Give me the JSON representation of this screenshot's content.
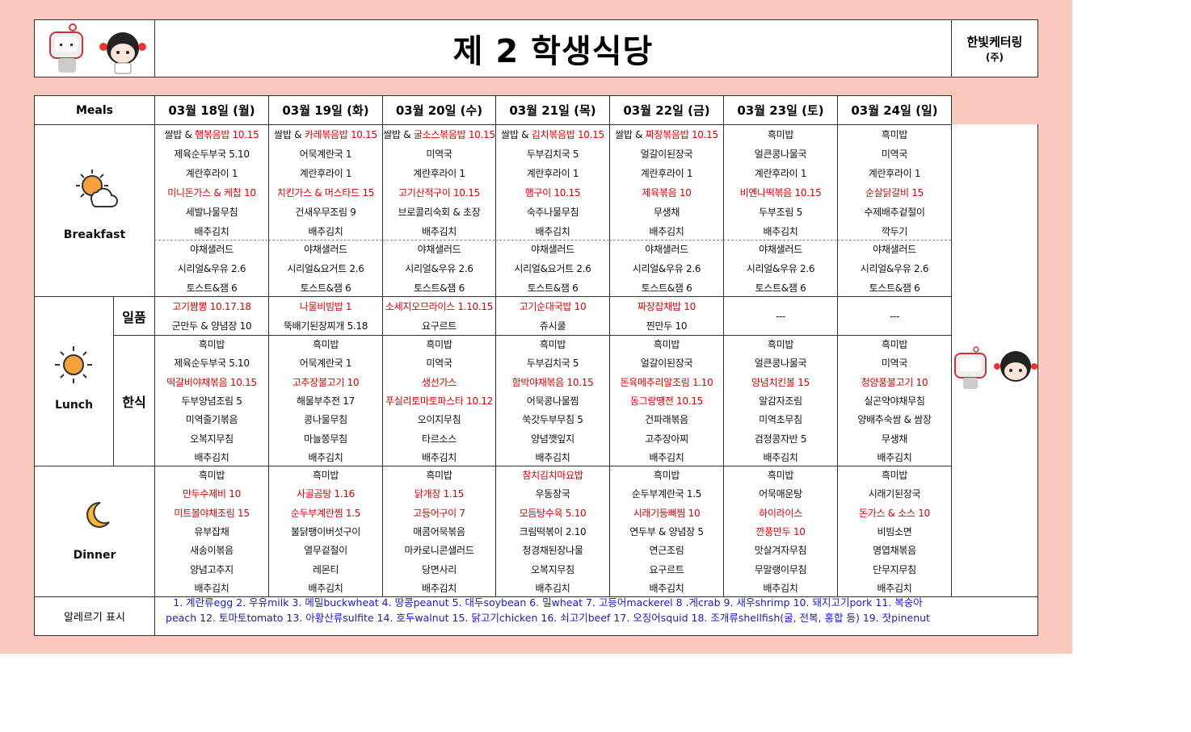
{
  "header": {
    "title": "제 2 학생식당",
    "company": "한빛케터링",
    "company_suffix": "(주)"
  },
  "table": {
    "corner": "Meals",
    "dates": [
      "03월 18일 (월)",
      "03월 19일 (화)",
      "03월 20일 (수)",
      "03월 21일 (목)",
      "03월 22일 (금)",
      "03월 23일 (토)",
      "03월 24일 (일)"
    ],
    "breakfast": {
      "label": "Breakfast",
      "main": [
        [
          {
            "prefix": "쌀밥 & ",
            "text": "햄볶음밥 10.15",
            "highlight": true
          },
          "제육순두부국 5.10",
          "계란후라이 1",
          {
            "text": "미니돈가스 & 케찹 10",
            "highlight": true
          },
          "세발나물무침",
          "배추김치"
        ],
        [
          {
            "prefix": "쌀밥 & ",
            "text": "카레볶음밥 10.15",
            "highlight": true
          },
          "어묵계란국 1",
          "계란후라이 1",
          {
            "text": "치킨가스 & 머스타드 15",
            "highlight": true
          },
          "건새우무조림 9",
          "배추김치"
        ],
        [
          {
            "prefix": "쌀밥 & ",
            "text": "굴소스볶음밥 10.15",
            "highlight": true
          },
          "미역국",
          "계란후라이 1",
          {
            "text": "고기산적구이 10.15",
            "highlight": true
          },
          "브로콜리숙회 & 초장",
          "배추김치"
        ],
        [
          {
            "prefix": "쌀밥 & ",
            "text": "김치볶음밥 10.15",
            "highlight": true
          },
          "두부김치국 5",
          "계란후라이 1",
          {
            "text": "햄구이 10.15",
            "highlight": true
          },
          "숙주나물무침",
          "배추김치"
        ],
        [
          {
            "prefix": "쌀밥 & ",
            "text": "짜장볶음밥 10.15",
            "highlight": true
          },
          "얼갈이된장국",
          "계란후라이 1",
          {
            "text": "제육볶음 10",
            "highlight": true
          },
          "무생채",
          "배추김치"
        ],
        [
          "흑미밥",
          "얼큰콩나물국",
          "계란후라이 1",
          {
            "text": "비엔나떡볶음 10.15",
            "highlight": true
          },
          "두부조림 5",
          "배추김치"
        ],
        [
          "흑미밥",
          "미역국",
          "계란후라이 1",
          {
            "text": "순살닭갈비 15",
            "highlight": true
          },
          "수제배추겉절이",
          "깍두기"
        ]
      ],
      "extra": [
        [
          "야채샐러드",
          "시리얼&우유 2.6",
          "토스트&잼 6"
        ],
        [
          "야채샐러드",
          "시리얼&요거트 2.6",
          "토스트&잼 6"
        ],
        [
          "야채샐러드",
          "시리얼&우유 2.6",
          "토스트&잼 6"
        ],
        [
          "야채샐러드",
          "시리얼&요거트 2.6",
          "토스트&잼 6"
        ],
        [
          "야채샐러드",
          "시리얼&우유 2.6",
          "토스트&잼 6"
        ],
        [
          "야채샐러드",
          "시리얼&우유 2.6",
          "토스트&잼 6"
        ],
        [
          "야채샐러드",
          "시리얼&우유 2.6",
          "토스트&잼 6"
        ]
      ]
    },
    "lunch": {
      "label": "Lunch",
      "special_label": "일품",
      "special": [
        [
          {
            "text": "고기짬뽕 10.17.18",
            "highlight": true
          },
          "군만두 & 양념장 10"
        ],
        [
          {
            "text": "나물비빔밥 1",
            "highlight": true
          },
          "뚝배기된장찌개 5.18"
        ],
        [
          {
            "text": "소세지오므라이스 1.10.15",
            "highlight": true
          },
          "요구르트"
        ],
        [
          {
            "text": "고기순대국밥 10",
            "highlight": true
          },
          "쥬시쿨"
        ],
        [
          {
            "text": "짜장잡채밥 10",
            "highlight": true
          },
          "찐만두 10"
        ],
        [
          "---"
        ],
        [
          "---"
        ]
      ],
      "korean_label": "한식",
      "korean": [
        [
          "흑미밥",
          "제육순두부국 5.10",
          {
            "text": "떡갈비야채볶음 10.15",
            "highlight": true
          },
          "두부양념조림 5",
          "미역줄기볶음",
          "오복지무침",
          "배추김치"
        ],
        [
          "흑미밥",
          "어묵계란국 1",
          {
            "text": "고추장불고기 10",
            "highlight": true
          },
          "해물부추전 17",
          "콩나물무침",
          "마늘쫑무침",
          "배추김치"
        ],
        [
          "흑미밥",
          "미역국",
          {
            "text": "생선가스",
            "highlight": true
          },
          {
            "text": "푸실리토마토파스타 10.12",
            "highlight": true
          },
          "오이지무침",
          "타르소스",
          "배추김치"
        ],
        [
          "흑미밥",
          "두부김치국 5",
          {
            "text": "함박야채볶음 10.15",
            "highlight": true
          },
          "어묵콩나물찜",
          "쑥갓두부무침 5",
          "양념깻잎지",
          "배추김치"
        ],
        [
          "흑미밥",
          "얼갈이된장국",
          {
            "text": "돈육메추리알조림 1.10",
            "highlight": true
          },
          {
            "text": "동그랑땡전 10.15",
            "highlight": true
          },
          "건파래볶음",
          "고추장아찌",
          "배추김치"
        ],
        [
          "흑미밥",
          "얼큰콩나물국",
          {
            "text": "양념치킨볼 15",
            "highlight": true
          },
          "알감자조림",
          "미역초무침",
          "검정콩자반 5",
          "배추김치"
        ],
        [
          "흑미밥",
          "미역국",
          {
            "text": "청양풍불고기 10",
            "highlight": true
          },
          "실곤약야채무침",
          "양배추숙쌈 & 쌈장",
          "무생채",
          "배추김치"
        ]
      ]
    },
    "dinner": {
      "label": "Dinner",
      "menu": [
        [
          "흑미밥",
          {
            "text": "만두수제비 10",
            "highlight": true
          },
          {
            "text": "미트볼야채조림 15",
            "highlight": true
          },
          "유부잡채",
          "새송이볶음",
          "양념고추지",
          "배추김치"
        ],
        [
          "흑미밥",
          {
            "text": "사골곰탕 1.16",
            "highlight": true
          },
          {
            "text": "순두부계란찜 1.5",
            "highlight": true
          },
          "불닭팽이버섯구이",
          "열무겉절이",
          "레몬티",
          "배추김치"
        ],
        [
          "흑미밥",
          {
            "text": "닭개장 1.15",
            "highlight": true
          },
          {
            "text": "고등어구이 7",
            "highlight": true
          },
          "매콤어묵볶음",
          "마카로니콘샐러드",
          "당면사리",
          "배추김치"
        ],
        [
          {
            "text": "참치김치마요밥",
            "highlight": true
          },
          "우동장국",
          {
            "text": "모듬탕수육 5.10",
            "highlight": true
          },
          "크림떡볶이 2.10",
          "청경채된장나물",
          "오복지무침",
          "배추김치"
        ],
        [
          "흑미밥",
          "순두부계란국 1.5",
          {
            "text": "시래기등뼈찜 10",
            "highlight": true
          },
          "연두부 & 양념장 5",
          "연근조림",
          "요구르트",
          "배추김치"
        ],
        [
          "흑미밥",
          "어묵매운탕",
          {
            "text": "하이라이스",
            "highlight": true
          },
          {
            "text": "깐풍만두 10",
            "highlight": true
          },
          "맛살겨자무침",
          "무말랭이무침",
          "배추김치"
        ],
        [
          "흑미밥",
          "시래기된장국",
          {
            "text": "돈가스 & 소스 10",
            "highlight": true
          },
          "비빔소면",
          "명엽채볶음",
          "단무지무침",
          "배추김치"
        ]
      ]
    },
    "allergy": {
      "label": "알레르기 표시",
      "text": "1. 계란류egg 2. 우유milk 3. 메밀buckwheat 4. 땅콩peanut 5. 대두soybean 6. 밀wheat 7. 고등어mackerel 8 .게crab 9. 새우shrimp 10. 돼지고기pork 11. 복숭아peach 12. 토마토tomato 13. 아황산류sulfite 14. 호두walnut 15. 닭고기chicken 16. 쇠고기beef 17. 오징어squid 18. 조개류shellfish(굴, 전복, 홍합 등) 19. 잣pinenut"
    }
  }
}
